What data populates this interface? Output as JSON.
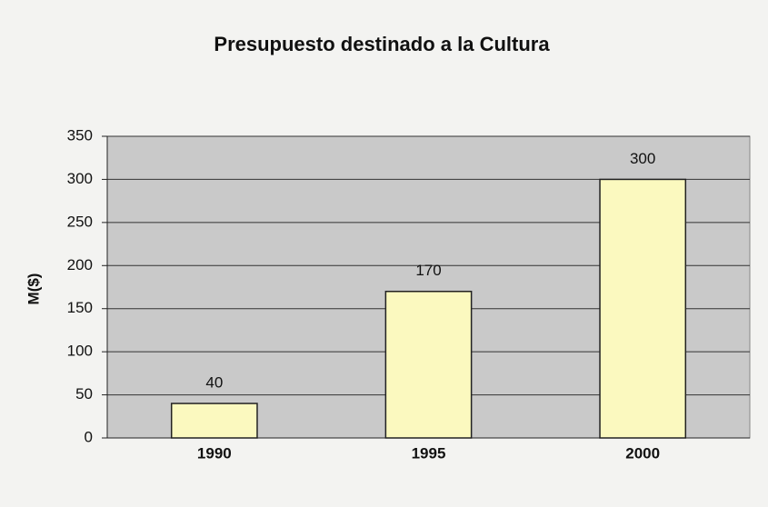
{
  "chart_data": {
    "type": "bar",
    "title": "Presupuesto destinado a la Cultura",
    "ylabel": "M($)",
    "categories": [
      "1990",
      "1995",
      "2000"
    ],
    "values": [
      40,
      170,
      300
    ],
    "color": "#fbf9bf",
    "plot_background": "#c9c9c9",
    "ylim": [
      0,
      350
    ],
    "yticks": [
      0,
      50,
      100,
      150,
      200,
      250,
      300,
      350
    ],
    "grid": true
  }
}
